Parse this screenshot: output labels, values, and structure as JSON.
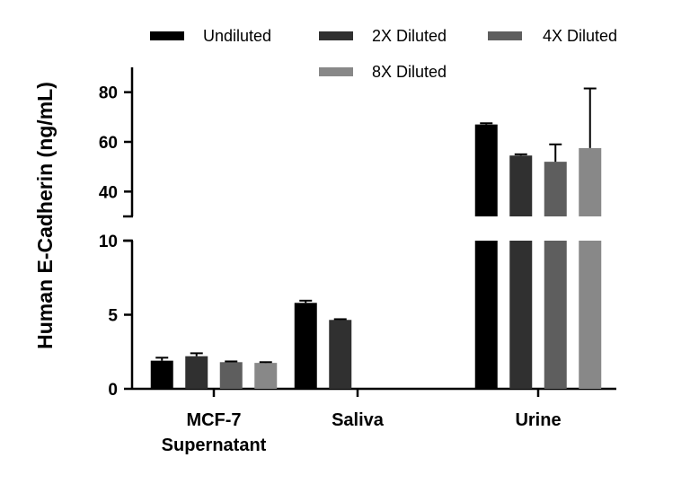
{
  "chart_data": {
    "type": "bar",
    "ylabel": "Human E-Cadherin (ng/mL)",
    "categories": [
      "MCF-7\nSupernatant",
      "Saliva",
      "Urine"
    ],
    "y_break": {
      "lower_range": [
        0,
        10
      ],
      "upper_range": [
        30,
        90
      ]
    },
    "lower_ticks": [
      0,
      5,
      10
    ],
    "upper_ticks": [
      40,
      60,
      80
    ],
    "series": [
      {
        "name": "Undiluted",
        "color": "#000000",
        "values": [
          1.9,
          5.8,
          67.0
        ],
        "errors": [
          0.2,
          0.15,
          0.5
        ]
      },
      {
        "name": "2X Diluted",
        "color": "#303030",
        "values": [
          2.2,
          4.65,
          54.5
        ],
        "errors": [
          0.2,
          0.05,
          0.5
        ]
      },
      {
        "name": "4X Diluted",
        "color": "#5e5e5e",
        "values": [
          1.8,
          null,
          52.0
        ],
        "errors": [
          0.05,
          null,
          7.0
        ]
      },
      {
        "name": "8X Diluted",
        "color": "#888888",
        "values": [
          1.75,
          null,
          57.5
        ],
        "errors": [
          0.05,
          null,
          24.0
        ]
      }
    ]
  }
}
